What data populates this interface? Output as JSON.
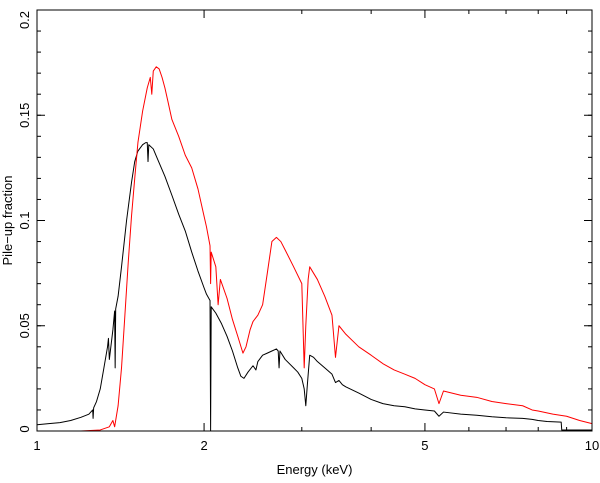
{
  "chart_data": {
    "type": "line",
    "title": "",
    "xlabel": "Energy (keV)",
    "ylabel": "Pile−up fraction",
    "x_scale": "log",
    "xlim": [
      1,
      10
    ],
    "ylim": [
      0,
      0.2
    ],
    "x_major_ticks": [
      {
        "value": 1,
        "label": "1"
      },
      {
        "value": 2,
        "label": "2"
      },
      {
        "value": 5,
        "label": "5"
      },
      {
        "value": 10,
        "label": "10"
      }
    ],
    "x_minor_ticks": [
      3,
      4,
      6,
      7,
      8,
      9
    ],
    "y_major_ticks": [
      {
        "value": 0,
        "label": "0"
      },
      {
        "value": 0.05,
        "label": "0.05"
      },
      {
        "value": 0.1,
        "label": "0.1"
      },
      {
        "value": 0.15,
        "label": "0.15"
      },
      {
        "value": 0.2,
        "label": "0.2"
      }
    ],
    "y_minor_step": 0.01,
    "grid": false,
    "legend": "none",
    "series": [
      {
        "color": "#000000",
        "points": [
          [
            1.0,
            0.003
          ],
          [
            1.05,
            0.0035
          ],
          [
            1.1,
            0.004
          ],
          [
            1.15,
            0.005
          ],
          [
            1.2,
            0.0065
          ],
          [
            1.24,
            0.008
          ],
          [
            1.26,
            0.01
          ],
          [
            1.262,
            0.006
          ],
          [
            1.265,
            0.011
          ],
          [
            1.28,
            0.014
          ],
          [
            1.3,
            0.02
          ],
          [
            1.32,
            0.03
          ],
          [
            1.34,
            0.04
          ],
          [
            1.345,
            0.044
          ],
          [
            1.35,
            0.034
          ],
          [
            1.37,
            0.048
          ],
          [
            1.38,
            0.057
          ],
          [
            1.383,
            0.03
          ],
          [
            1.386,
            0.058
          ],
          [
            1.4,
            0.064
          ],
          [
            1.42,
            0.078
          ],
          [
            1.45,
            0.1
          ],
          [
            1.48,
            0.118
          ],
          [
            1.5,
            0.128
          ],
          [
            1.52,
            0.133
          ],
          [
            1.55,
            0.136
          ],
          [
            1.57,
            0.137
          ],
          [
            1.58,
            0.137
          ],
          [
            1.585,
            0.128
          ],
          [
            1.59,
            0.136
          ],
          [
            1.62,
            0.134
          ],
          [
            1.65,
            0.129
          ],
          [
            1.7,
            0.121
          ],
          [
            1.75,
            0.112
          ],
          [
            1.8,
            0.103
          ],
          [
            1.85,
            0.095
          ],
          [
            1.9,
            0.085
          ],
          [
            1.95,
            0.076
          ],
          [
            2.0,
            0.068
          ],
          [
            2.02,
            0.065
          ],
          [
            2.05,
            0.062
          ],
          [
            2.055,
            0.0
          ],
          [
            2.06,
            0.059
          ],
          [
            2.1,
            0.056
          ],
          [
            2.15,
            0.051
          ],
          [
            2.2,
            0.045
          ],
          [
            2.25,
            0.038
          ],
          [
            2.3,
            0.03
          ],
          [
            2.33,
            0.026
          ],
          [
            2.36,
            0.025
          ],
          [
            2.4,
            0.028
          ],
          [
            2.45,
            0.031
          ],
          [
            2.48,
            0.029
          ],
          [
            2.5,
            0.033
          ],
          [
            2.55,
            0.036
          ],
          [
            2.6,
            0.037
          ],
          [
            2.65,
            0.038
          ],
          [
            2.7,
            0.039
          ],
          [
            2.72,
            0.038
          ],
          [
            2.73,
            0.03
          ],
          [
            2.74,
            0.038
          ],
          [
            2.8,
            0.034
          ],
          [
            2.9,
            0.03
          ],
          [
            2.95,
            0.028
          ],
          [
            3.0,
            0.025
          ],
          [
            3.03,
            0.02
          ],
          [
            3.05,
            0.012
          ],
          [
            3.07,
            0.022
          ],
          [
            3.1,
            0.036
          ],
          [
            3.15,
            0.035
          ],
          [
            3.2,
            0.033
          ],
          [
            3.3,
            0.03
          ],
          [
            3.4,
            0.027
          ],
          [
            3.45,
            0.023
          ],
          [
            3.5,
            0.024
          ],
          [
            3.55,
            0.022
          ],
          [
            3.6,
            0.021
          ],
          [
            3.8,
            0.018
          ],
          [
            4.0,
            0.015
          ],
          [
            4.2,
            0.013
          ],
          [
            4.4,
            0.012
          ],
          [
            4.6,
            0.0115
          ],
          [
            4.8,
            0.0105
          ],
          [
            5.0,
            0.01
          ],
          [
            5.2,
            0.0095
          ],
          [
            5.3,
            0.007
          ],
          [
            5.4,
            0.009
          ],
          [
            5.8,
            0.008
          ],
          [
            6.2,
            0.0075
          ],
          [
            6.6,
            0.0068
          ],
          [
            7.0,
            0.0063
          ],
          [
            7.5,
            0.006
          ],
          [
            7.8,
            0.0055
          ],
          [
            8.0,
            0.005
          ],
          [
            8.3,
            0.0045
          ],
          [
            8.8,
            0.0042
          ],
          [
            8.82,
            0.0005
          ],
          [
            9.2,
            0.0005
          ],
          [
            10.0,
            0.0005
          ]
        ]
      },
      {
        "color": "#ff0000",
        "points": [
          [
            1.0,
            0.0
          ],
          [
            1.2,
            0.0
          ],
          [
            1.3,
            0.0005
          ],
          [
            1.35,
            0.002
          ],
          [
            1.37,
            0.005
          ],
          [
            1.38,
            0.002
          ],
          [
            1.4,
            0.012
          ],
          [
            1.42,
            0.03
          ],
          [
            1.44,
            0.055
          ],
          [
            1.46,
            0.08
          ],
          [
            1.48,
            0.102
          ],
          [
            1.5,
            0.12
          ],
          [
            1.52,
            0.137
          ],
          [
            1.55,
            0.152
          ],
          [
            1.58,
            0.163
          ],
          [
            1.6,
            0.168
          ],
          [
            1.61,
            0.16
          ],
          [
            1.62,
            0.171
          ],
          [
            1.64,
            0.173
          ],
          [
            1.66,
            0.172
          ],
          [
            1.68,
            0.168
          ],
          [
            1.7,
            0.163
          ],
          [
            1.72,
            0.157
          ],
          [
            1.75,
            0.148
          ],
          [
            1.8,
            0.14
          ],
          [
            1.85,
            0.131
          ],
          [
            1.9,
            0.125
          ],
          [
            1.95,
            0.115
          ],
          [
            2.0,
            0.102
          ],
          [
            2.02,
            0.097
          ],
          [
            2.05,
            0.088
          ],
          [
            2.055,
            0.07
          ],
          [
            2.06,
            0.085
          ],
          [
            2.1,
            0.078
          ],
          [
            2.12,
            0.06
          ],
          [
            2.14,
            0.072
          ],
          [
            2.2,
            0.063
          ],
          [
            2.25,
            0.053
          ],
          [
            2.3,
            0.045
          ],
          [
            2.35,
            0.037
          ],
          [
            2.38,
            0.04
          ],
          [
            2.42,
            0.048
          ],
          [
            2.45,
            0.052
          ],
          [
            2.5,
            0.055
          ],
          [
            2.55,
            0.06
          ],
          [
            2.6,
            0.075
          ],
          [
            2.65,
            0.09
          ],
          [
            2.7,
            0.092
          ],
          [
            2.75,
            0.09
          ],
          [
            2.8,
            0.086
          ],
          [
            2.9,
            0.078
          ],
          [
            3.0,
            0.07
          ],
          [
            3.03,
            0.03
          ],
          [
            3.05,
            0.05
          ],
          [
            3.08,
            0.072
          ],
          [
            3.1,
            0.078
          ],
          [
            3.2,
            0.072
          ],
          [
            3.3,
            0.064
          ],
          [
            3.4,
            0.055
          ],
          [
            3.45,
            0.035
          ],
          [
            3.5,
            0.05
          ],
          [
            3.6,
            0.046
          ],
          [
            3.8,
            0.04
          ],
          [
            4.0,
            0.036
          ],
          [
            4.2,
            0.032
          ],
          [
            4.4,
            0.029
          ],
          [
            4.6,
            0.027
          ],
          [
            4.8,
            0.025
          ],
          [
            5.0,
            0.022
          ],
          [
            5.2,
            0.02
          ],
          [
            5.3,
            0.013
          ],
          [
            5.4,
            0.019
          ],
          [
            5.8,
            0.017
          ],
          [
            6.2,
            0.016
          ],
          [
            6.6,
            0.014
          ],
          [
            7.0,
            0.013
          ],
          [
            7.5,
            0.012
          ],
          [
            7.8,
            0.01
          ],
          [
            8.0,
            0.0095
          ],
          [
            8.5,
            0.008
          ],
          [
            9.0,
            0.007
          ],
          [
            9.5,
            0.005
          ],
          [
            10.0,
            0.0035
          ]
        ]
      }
    ]
  }
}
